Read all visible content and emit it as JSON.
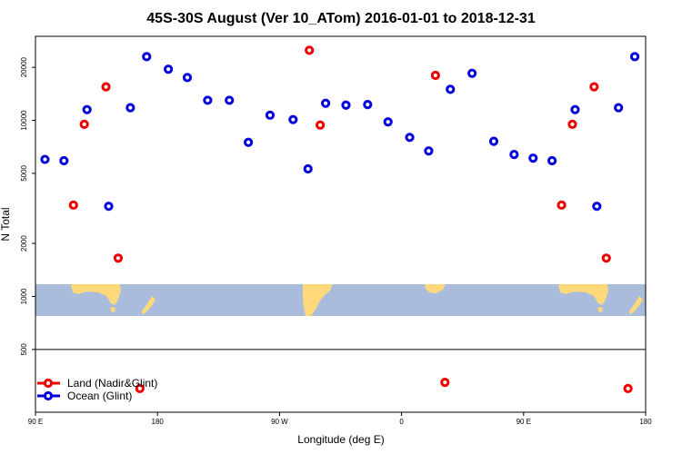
{
  "chart_data": {
    "type": "scatter",
    "title": "45S-30S August (Ver 10_ATom)   2016-01-01 to 2018-12-31",
    "xlabel": "Longitude (deg E)",
    "ylabel": "N Total",
    "x_ticks": [
      {
        "value": 90,
        "label": "90 E"
      },
      {
        "value": 180,
        "label": "180"
      },
      {
        "value": 270,
        "label": "90 W"
      },
      {
        "value": 360,
        "label": "0"
      },
      {
        "value": 450,
        "label": "90 E"
      },
      {
        "value": 540,
        "label": "180"
      }
    ],
    "y_ticks": [
      {
        "value": 500,
        "label": "500"
      },
      {
        "value": 1000,
        "label": "1000"
      },
      {
        "value": 2000,
        "label": "2000"
      },
      {
        "value": 5000,
        "label": "5000"
      },
      {
        "value": 10000,
        "label": "10000"
      },
      {
        "value": 20000,
        "label": "20000"
      }
    ],
    "xlim": [
      90,
      540
    ],
    "ylim": [
      220,
      30000
    ],
    "y_scale": "log",
    "separator_y": 500,
    "legend_position": "bottom-left",
    "map_colors": {
      "ocean": "#a9bcdc",
      "land": "#ffd97a"
    },
    "series": [
      {
        "name": "Land (Nadir&Glint)",
        "color": "#ee0000",
        "points": [
          {
            "x": 118,
            "y": 3300
          },
          {
            "x": 126,
            "y": 9500
          },
          {
            "x": 142,
            "y": 15500
          },
          {
            "x": 151,
            "y": 1650
          },
          {
            "x": 167,
            "y": 300
          },
          {
            "x": 292,
            "y": 25000
          },
          {
            "x": 300,
            "y": 9400
          },
          {
            "x": 385,
            "y": 18000
          },
          {
            "x": 392,
            "y": 325
          },
          {
            "x": 478,
            "y": 3300
          },
          {
            "x": 486,
            "y": 9500
          },
          {
            "x": 502,
            "y": 15500
          },
          {
            "x": 511,
            "y": 1650
          },
          {
            "x": 527,
            "y": 300
          }
        ]
      },
      {
        "name": "Ocean (Glint)",
        "color": "#0000dd",
        "points": [
          {
            "x": 97,
            "y": 6000
          },
          {
            "x": 111,
            "y": 5900
          },
          {
            "x": 128,
            "y": 11500
          },
          {
            "x": 144,
            "y": 3250
          },
          {
            "x": 160,
            "y": 11800
          },
          {
            "x": 172,
            "y": 23000
          },
          {
            "x": 188,
            "y": 19500
          },
          {
            "x": 202,
            "y": 17500
          },
          {
            "x": 217,
            "y": 13000
          },
          {
            "x": 233,
            "y": 13000
          },
          {
            "x": 247,
            "y": 7500
          },
          {
            "x": 263,
            "y": 10700
          },
          {
            "x": 280,
            "y": 10100
          },
          {
            "x": 291,
            "y": 5300
          },
          {
            "x": 304,
            "y": 12500
          },
          {
            "x": 319,
            "y": 12200
          },
          {
            "x": 335,
            "y": 12300
          },
          {
            "x": 350,
            "y": 9800
          },
          {
            "x": 366,
            "y": 8000
          },
          {
            "x": 380,
            "y": 6700
          },
          {
            "x": 396,
            "y": 15000
          },
          {
            "x": 412,
            "y": 18500
          },
          {
            "x": 428,
            "y": 7600
          },
          {
            "x": 443,
            "y": 6400
          },
          {
            "x": 457,
            "y": 6100
          },
          {
            "x": 471,
            "y": 5900
          },
          {
            "x": 488,
            "y": 11500
          },
          {
            "x": 504,
            "y": 3250
          },
          {
            "x": 520,
            "y": 11800
          },
          {
            "x": 532,
            "y": 23000
          }
        ]
      }
    ]
  }
}
